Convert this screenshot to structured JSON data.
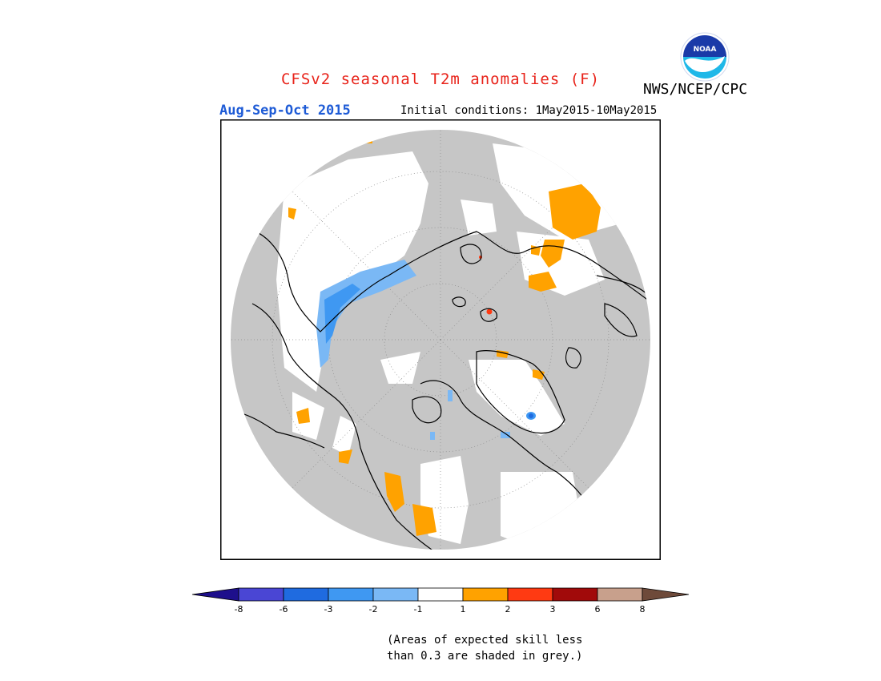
{
  "header": {
    "title": "CFSv2 seasonal T2m anomalies (F)",
    "season": "Aug-Sep-Oct 2015",
    "initial_conditions": "Initial conditions: 1May2015-10May2015",
    "agency": "NWS/NCEP/CPC",
    "logo_text": "NOAA"
  },
  "legend": {
    "tick_labels": [
      "-8",
      "-6",
      "-3",
      "-2",
      "-1",
      "1",
      "2",
      "3",
      "6",
      "8"
    ],
    "colors": [
      "#1e0f8c",
      "#4a46d4",
      "#1f6be0",
      "#3f98f2",
      "#7ab8f5",
      "#ffffff",
      "#ffa200",
      "#ff3a12",
      "#a10a0a",
      "#c8a08c",
      "#6e4a3a"
    ],
    "note_line1": "(Areas of expected skill less",
    "note_line2": "than 0.3 are shaded in grey.)"
  },
  "map": {
    "projection": "north-polar-stereographic",
    "land_grey_color": "#c6c6c6",
    "coast_color": "#000000"
  }
}
